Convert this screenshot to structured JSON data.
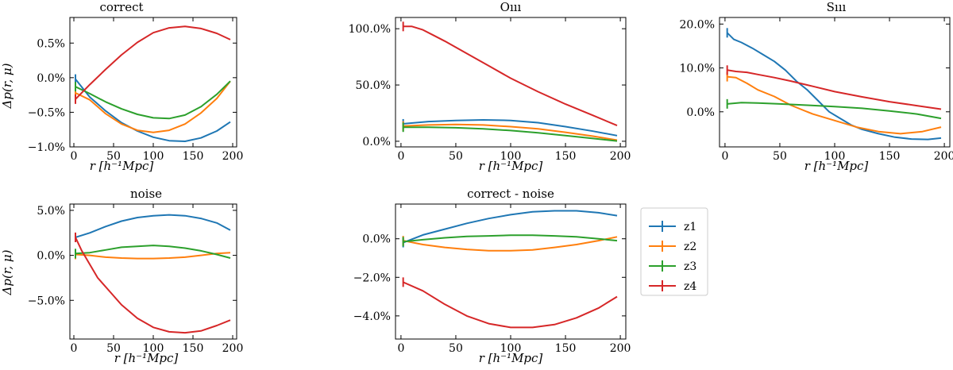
{
  "colors": {
    "z1": "#1f77b4",
    "z2": "#ff7f0e",
    "z3": "#2ca02c",
    "z4": "#d62728"
  },
  "legend": {
    "placement": "right-of-bottom-row",
    "entries": [
      "z1",
      "z2",
      "z3",
      "z4"
    ]
  },
  "chart_data": [
    {
      "type": "line",
      "title": "correct",
      "xlabel": "r [h⁻¹Mpc]",
      "ylabel": "Δp(r, μ)",
      "xlim": [
        -5,
        205
      ],
      "ylim": [
        -1.0,
        0.87
      ],
      "xticks": [
        0,
        50,
        100,
        150,
        200
      ],
      "xtick_labels": [
        "0",
        "50",
        "100",
        "150",
        "200"
      ],
      "yticks": [
        -1.0,
        -0.5,
        0.0,
        0.5
      ],
      "ytick_labels": [
        "−1.0%",
        "−0.5%",
        "0.0%",
        "0.5%"
      ],
      "series": [
        {
          "name": "z1",
          "x": [
            2,
            20,
            40,
            60,
            80,
            100,
            120,
            140,
            160,
            180,
            197
          ],
          "y": [
            -0.02,
            -0.28,
            -0.48,
            -0.65,
            -0.77,
            -0.86,
            -0.91,
            -0.92,
            -0.87,
            -0.77,
            -0.64
          ]
        },
        {
          "name": "z2",
          "x": [
            2,
            20,
            40,
            60,
            80,
            100,
            120,
            140,
            160,
            180,
            197
          ],
          "y": [
            -0.22,
            -0.32,
            -0.52,
            -0.67,
            -0.76,
            -0.79,
            -0.76,
            -0.67,
            -0.51,
            -0.3,
            -0.05
          ]
        },
        {
          "name": "z3",
          "x": [
            2,
            20,
            40,
            60,
            80,
            100,
            120,
            140,
            160,
            180,
            197
          ],
          "y": [
            -0.13,
            -0.23,
            -0.35,
            -0.45,
            -0.53,
            -0.58,
            -0.59,
            -0.54,
            -0.42,
            -0.24,
            -0.05
          ]
        },
        {
          "name": "z4",
          "x": [
            2,
            20,
            40,
            60,
            80,
            100,
            120,
            140,
            160,
            180,
            197
          ],
          "y": [
            -0.31,
            -0.1,
            0.12,
            0.33,
            0.51,
            0.65,
            0.72,
            0.74,
            0.71,
            0.64,
            0.55
          ]
        }
      ]
    },
    {
      "type": "line",
      "title": "Oııı",
      "xlabel": "r [h⁻¹Mpc]",
      "ylabel": "",
      "xlim": [
        -5,
        205
      ],
      "ylim": [
        -5,
        110
      ],
      "xticks": [
        0,
        50,
        100,
        150,
        200
      ],
      "xtick_labels": [
        "0",
        "50",
        "100",
        "150",
        "200"
      ],
      "yticks": [
        0,
        50,
        100
      ],
      "ytick_labels": [
        "0.0%",
        "50.0%",
        "100.0%"
      ],
      "series": [
        {
          "name": "z1",
          "x": [
            2,
            25,
            50,
            75,
            100,
            125,
            150,
            175,
            197
          ],
          "y": [
            15.5,
            17.5,
            18.5,
            19.0,
            18.5,
            16.5,
            13.0,
            9.0,
            5.0
          ]
        },
        {
          "name": "z2",
          "x": [
            2,
            25,
            50,
            75,
            100,
            125,
            150,
            175,
            197
          ],
          "y": [
            13.5,
            14.5,
            15.0,
            14.5,
            13.0,
            11.0,
            8.0,
            4.5,
            1.0
          ]
        },
        {
          "name": "z3",
          "x": [
            2,
            25,
            50,
            75,
            100,
            125,
            150,
            175,
            197
          ],
          "y": [
            12.5,
            12.5,
            12.0,
            11.0,
            9.5,
            7.5,
            5.0,
            2.5,
            0.2
          ]
        },
        {
          "name": "z4",
          "x": [
            2,
            10,
            20,
            30,
            40,
            60,
            80,
            100,
            125,
            150,
            175,
            197
          ],
          "y": [
            102,
            102,
            99,
            94,
            89,
            78,
            67,
            56,
            44,
            33,
            23,
            14
          ]
        }
      ]
    },
    {
      "type": "line",
      "title": "Sııı",
      "xlabel": "r [h⁻¹Mpc]",
      "ylabel": "",
      "xlim": [
        -5,
        205
      ],
      "ylim": [
        -8,
        21.5
      ],
      "xticks": [
        0,
        50,
        100,
        150,
        200
      ],
      "xtick_labels": [
        "0",
        "50",
        "100",
        "150",
        "200"
      ],
      "yticks": [
        0,
        10,
        20
      ],
      "ytick_labels": [
        "0.0%",
        "10.0%",
        "20.0%"
      ],
      "series": [
        {
          "name": "z1",
          "x": [
            2,
            8,
            15,
            25,
            35,
            45,
            55,
            65,
            75,
            85,
            95,
            105,
            115,
            125,
            140,
            155,
            170,
            185,
            197
          ],
          "y": [
            18.0,
            16.5,
            15.8,
            14.5,
            13.0,
            11.5,
            9.5,
            7.0,
            5.0,
            2.5,
            0.0,
            -1.5,
            -3.0,
            -4.0,
            -5.0,
            -5.8,
            -6.2,
            -6.3,
            -6.0
          ]
        },
        {
          "name": "z2",
          "x": [
            2,
            10,
            20,
            30,
            45,
            60,
            80,
            100,
            120,
            140,
            160,
            180,
            197
          ],
          "y": [
            8.0,
            7.8,
            6.5,
            5.0,
            3.5,
            1.5,
            -0.5,
            -2.0,
            -3.5,
            -4.5,
            -5.0,
            -4.5,
            -3.5
          ]
        },
        {
          "name": "z3",
          "x": [
            2,
            15,
            30,
            50,
            75,
            100,
            125,
            150,
            175,
            197
          ],
          "y": [
            1.8,
            2.1,
            2.0,
            1.8,
            1.5,
            1.2,
            0.8,
            0.2,
            -0.5,
            -1.5
          ]
        },
        {
          "name": "z4",
          "x": [
            2,
            10,
            20,
            30,
            45,
            60,
            80,
            100,
            125,
            150,
            175,
            197
          ],
          "y": [
            9.5,
            9.2,
            9.0,
            8.5,
            7.8,
            7.0,
            5.8,
            4.6,
            3.4,
            2.3,
            1.4,
            0.6
          ]
        }
      ]
    },
    {
      "type": "line",
      "title": "noise",
      "xlabel": "r [h⁻¹Mpc]",
      "ylabel": "Δp(r, μ)",
      "xlim": [
        -5,
        205
      ],
      "ylim": [
        -9.3,
        5.7
      ],
      "xticks": [
        0,
        50,
        100,
        150,
        200
      ],
      "xtick_labels": [
        "0",
        "50",
        "100",
        "150",
        "200"
      ],
      "yticks": [
        -5,
        0,
        5
      ],
      "ytick_labels": [
        "−5.0%",
        "0.0%",
        "5.0%"
      ],
      "series": [
        {
          "name": "z1",
          "x": [
            2,
            20,
            40,
            60,
            80,
            100,
            120,
            140,
            160,
            180,
            197
          ],
          "y": [
            2.0,
            2.5,
            3.2,
            3.8,
            4.2,
            4.4,
            4.5,
            4.4,
            4.1,
            3.6,
            2.8
          ]
        },
        {
          "name": "z2",
          "x": [
            2,
            20,
            40,
            60,
            80,
            100,
            120,
            140,
            160,
            180,
            197
          ],
          "y": [
            0.1,
            0.0,
            -0.2,
            -0.3,
            -0.35,
            -0.35,
            -0.3,
            -0.2,
            0.0,
            0.2,
            0.3
          ]
        },
        {
          "name": "z3",
          "x": [
            2,
            20,
            40,
            60,
            80,
            100,
            120,
            140,
            160,
            180,
            197
          ],
          "y": [
            0.2,
            0.3,
            0.6,
            0.9,
            1.0,
            1.1,
            1.0,
            0.8,
            0.5,
            0.1,
            -0.3
          ]
        },
        {
          "name": "z4",
          "x": [
            2,
            10,
            20,
            30,
            45,
            60,
            80,
            100,
            120,
            140,
            160,
            180,
            197
          ],
          "y": [
            2.0,
            0.5,
            -1.0,
            -2.5,
            -4.0,
            -5.5,
            -7.0,
            -8.0,
            -8.5,
            -8.6,
            -8.4,
            -7.8,
            -7.2
          ]
        }
      ]
    },
    {
      "type": "line",
      "title": "correct - noise",
      "xlabel": "r [h⁻¹Mpc]",
      "ylabel": "",
      "xlim": [
        -5,
        205
      ],
      "ylim": [
        -5.2,
        1.8
      ],
      "xticks": [
        0,
        50,
        100,
        150,
        200
      ],
      "xtick_labels": [
        "0",
        "50",
        "100",
        "150",
        "200"
      ],
      "yticks": [
        -4,
        -2,
        0
      ],
      "ytick_labels": [
        "−4.0%",
        "−2.0%",
        "0.0%"
      ],
      "series": [
        {
          "name": "z1",
          "x": [
            2,
            20,
            40,
            60,
            80,
            100,
            120,
            140,
            160,
            180,
            197
          ],
          "y": [
            -0.2,
            0.2,
            0.5,
            0.8,
            1.05,
            1.25,
            1.4,
            1.45,
            1.45,
            1.35,
            1.2
          ]
        },
        {
          "name": "z2",
          "x": [
            2,
            20,
            40,
            60,
            80,
            100,
            120,
            140,
            160,
            180,
            197
          ],
          "y": [
            -0.1,
            -0.3,
            -0.45,
            -0.55,
            -0.62,
            -0.62,
            -0.58,
            -0.45,
            -0.3,
            -0.1,
            0.1
          ]
        },
        {
          "name": "z3",
          "x": [
            2,
            20,
            40,
            60,
            80,
            100,
            120,
            140,
            160,
            180,
            197
          ],
          "y": [
            -0.15,
            -0.05,
            0.05,
            0.12,
            0.15,
            0.18,
            0.18,
            0.15,
            0.1,
            0.0,
            -0.1
          ]
        },
        {
          "name": "z4",
          "x": [
            2,
            20,
            40,
            60,
            80,
            100,
            120,
            140,
            160,
            180,
            197
          ],
          "y": [
            -2.25,
            -2.7,
            -3.4,
            -4.0,
            -4.4,
            -4.6,
            -4.6,
            -4.45,
            -4.1,
            -3.6,
            -3.0
          ]
        }
      ]
    }
  ]
}
